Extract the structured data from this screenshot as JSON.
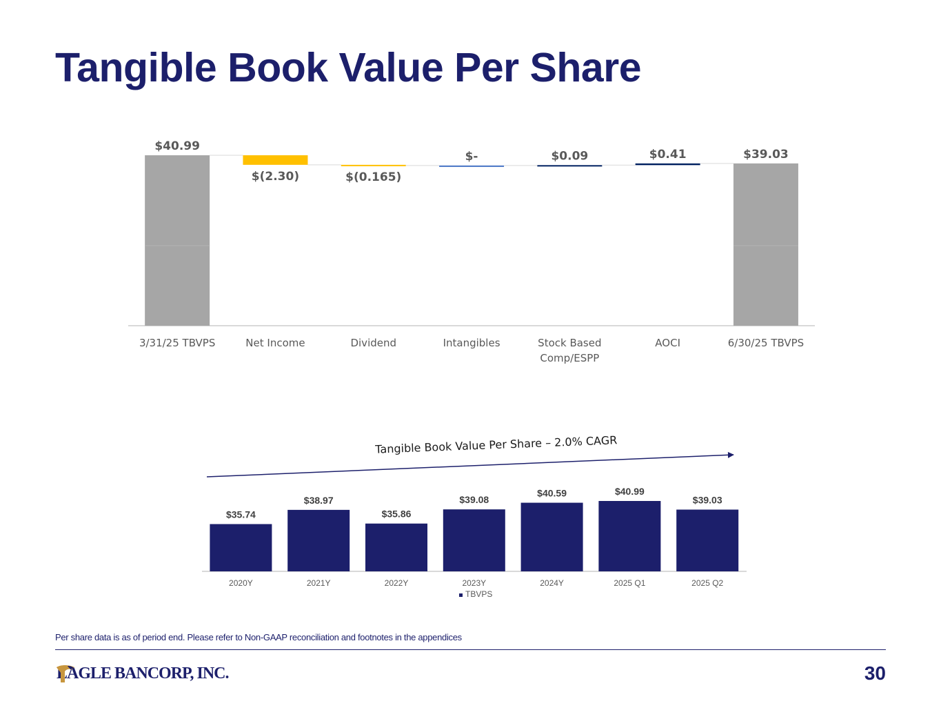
{
  "page": {
    "title": "Tangible Book Value Per Share",
    "footnote": "Per share data is as of period end. Please refer to Non-GAAP reconciliation and footnotes in the appendices",
    "page_number": "30",
    "logo": {
      "text": "EAGLE BANCORP, INC.",
      "display_text": "EAGLE BANCORP, INC."
    }
  },
  "colors": {
    "title": "#1c1f6b",
    "gray_bar": "#a6a6a6",
    "decrease": "#ffc000",
    "increase": "#002060",
    "navy_bar": "#1c1f6b",
    "label_text": "#595959"
  },
  "chart_data": [
    {
      "type": "waterfall",
      "title": "",
      "categories": [
        "3/31/25 TBVPS",
        "Net Income",
        "Dividend",
        "Intangibles",
        "Stock Based Comp/ESPP",
        "AOCI",
        "6/30/25 TBVPS"
      ],
      "category_lines": [
        [
          "3/31/25 TBVPS"
        ],
        [
          "Net Income"
        ],
        [
          "Dividend"
        ],
        [
          "Intangibles"
        ],
        [
          "Stock Based",
          "Comp/ESPP"
        ],
        [
          "AOCI"
        ],
        [
          "6/30/25 TBVPS"
        ]
      ],
      "values": [
        40.99,
        -2.3,
        -0.165,
        0,
        0.09,
        0.41,
        39.03
      ],
      "kinds": [
        "total",
        "delta",
        "delta",
        "delta",
        "delta",
        "delta",
        "total"
      ],
      "value_labels": [
        "$40.99",
        "$(2.30)",
        "$(0.165)",
        "$-",
        "$0.09",
        "$0.41",
        "$39.03"
      ],
      "ylim": [
        0,
        42
      ],
      "grid": false,
      "legend": "none"
    },
    {
      "type": "bar",
      "title": "Tangible Book Value Per Share – 2.0% CAGR",
      "categories": [
        "2020Y",
        "2021Y",
        "2022Y",
        "2023Y",
        "2024Y",
        "2025 Q1",
        "2025 Q2"
      ],
      "series": [
        {
          "name": "TBVPS",
          "values": [
            35.74,
            38.97,
            35.86,
            39.08,
            40.59,
            40.99,
            39.03
          ]
        }
      ],
      "value_labels": [
        "$35.74",
        "$38.97",
        "$35.86",
        "$39.08",
        "$40.59",
        "$40.99",
        "$39.03"
      ],
      "ylim": [
        25,
        42
      ],
      "grid": false,
      "legend": "bottom-center",
      "annotation": "Tangible Book Value Per Share – 2.0% CAGR"
    }
  ]
}
